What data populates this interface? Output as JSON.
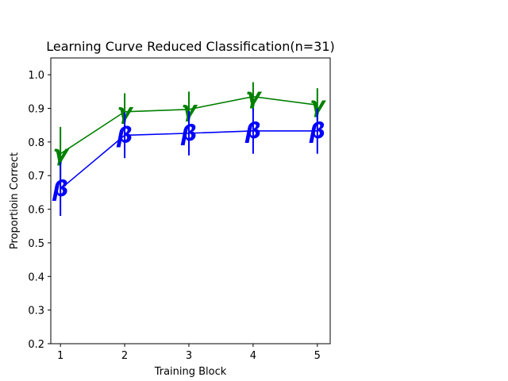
{
  "chart_data": {
    "type": "line",
    "title": "Learning Curve Reduced Classification(n=31)",
    "xlabel": "Training Block",
    "ylabel": "Proportioin Correct",
    "x": [
      1,
      2,
      3,
      4,
      5
    ],
    "xticks": [
      "1",
      "2",
      "3",
      "4",
      "5"
    ],
    "yticks": [
      "0.2",
      "0.3",
      "0.4",
      "0.5",
      "0.6",
      "0.7",
      "0.8",
      "0.9",
      "1.0"
    ],
    "xlim": [
      0.85,
      5.2
    ],
    "ylim": [
      0.2,
      1.05
    ],
    "grid": false,
    "series": [
      {
        "marker": "γ",
        "color": "#008000",
        "values": [
          0.765,
          0.89,
          0.897,
          0.935,
          0.91
        ],
        "err_low": [
          0.685,
          0.835,
          0.845,
          0.892,
          0.862
        ],
        "err_high": [
          0.845,
          0.945,
          0.95,
          0.978,
          0.96
        ]
      },
      {
        "marker": "β",
        "color": "#0000ff",
        "values": [
          0.66,
          0.82,
          0.826,
          0.833,
          0.833
        ],
        "err_low": [
          0.58,
          0.752,
          0.76,
          0.765,
          0.765
        ],
        "err_high": [
          0.74,
          0.888,
          0.892,
          0.9,
          0.9
        ]
      }
    ]
  }
}
